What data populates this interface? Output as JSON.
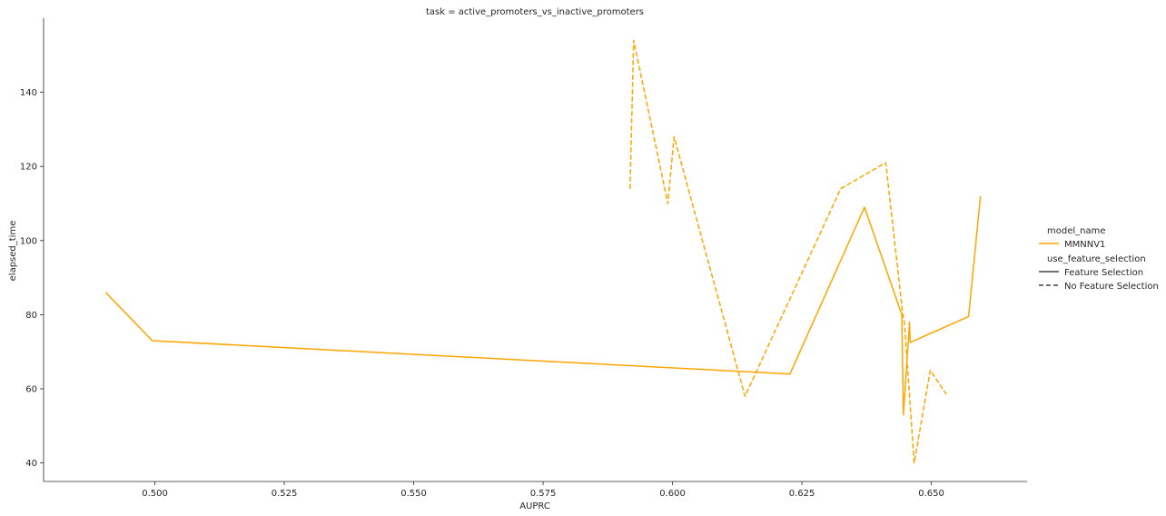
{
  "chart_data": {
    "type": "line",
    "title": "task = active_promoters_vs_inactive_promoters",
    "xlabel": "AUPRC",
    "ylabel": "elapsed_time",
    "xlim": [
      0.4785,
      0.6685
    ],
    "ylim": [
      35,
      160
    ],
    "x_ticks": [
      0.5,
      0.525,
      0.55,
      0.575,
      0.6,
      0.625,
      0.65
    ],
    "x_tick_labels": [
      "0.500",
      "0.525",
      "0.550",
      "0.575",
      "0.600",
      "0.625",
      "0.650"
    ],
    "y_ticks": [
      40,
      60,
      80,
      100,
      120,
      140
    ],
    "y_tick_labels": [
      "40",
      "60",
      "80",
      "100",
      "120",
      "140"
    ],
    "grid": false,
    "color": "#FFA500",
    "legend": {
      "placement": "right",
      "hue_title": "model_name",
      "hue_entries": [
        "MMNNV1"
      ],
      "style_title": "use_feature_selection",
      "style_entries": [
        "Feature Selection",
        "No Feature Selection"
      ]
    },
    "series": [
      {
        "name": "Feature Selection",
        "dash": "solid",
        "x": [
          0.4905,
          0.4995,
          0.6227,
          0.6371,
          0.6443,
          0.6446,
          0.6458,
          0.6459,
          0.6572,
          0.6595
        ],
        "y": [
          86,
          73,
          64,
          109,
          80,
          53,
          78,
          72.5,
          79.5,
          112
        ]
      },
      {
        "name": "No Feature Selection",
        "dash": "dashed",
        "x": [
          0.5918,
          0.5925,
          0.5991,
          0.6003,
          0.614,
          0.6325,
          0.6412,
          0.6445,
          0.6448,
          0.6467,
          0.6498,
          0.6529
        ],
        "y": [
          114,
          154,
          110,
          128,
          58,
          114,
          121,
          80,
          78,
          40,
          65,
          58.5
        ]
      }
    ]
  }
}
